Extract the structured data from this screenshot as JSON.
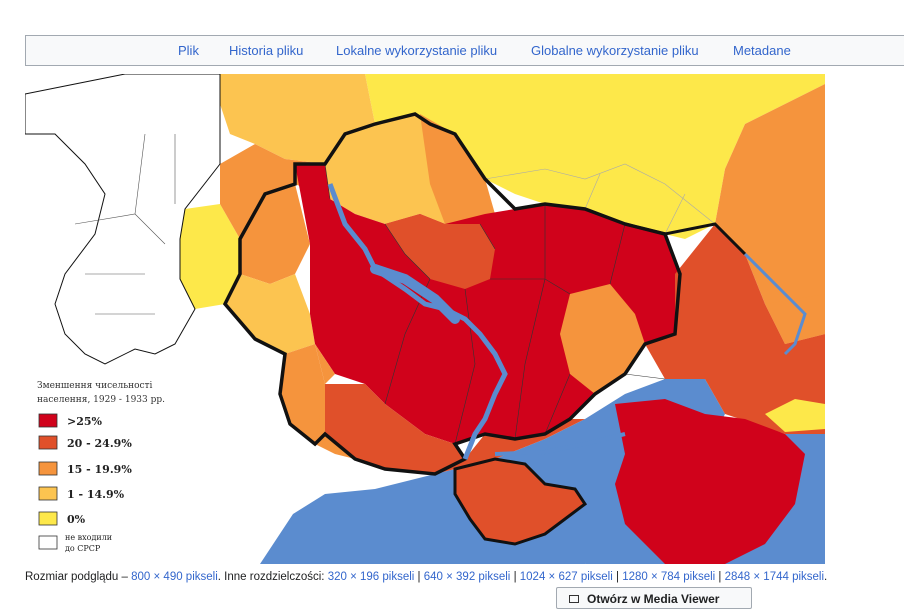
{
  "tabs": [
    {
      "label": "Plik"
    },
    {
      "label": "Historia pliku"
    },
    {
      "label": "Lokalne wykorzystanie pliku"
    },
    {
      "label": "Globalne wykorzystanie pliku"
    },
    {
      "label": "Metadane"
    }
  ],
  "legend": {
    "title_line1": "Зменшення чисельності",
    "title_line2": "населення, 1929 - 1933 рр.",
    "items": [
      {
        "label": ">25%",
        "color": "#d0021b"
      },
      {
        "label": "20 - 24.9%",
        "color": "#e0502a"
      },
      {
        "label": "15 - 19.9%",
        "color": "#f5943d"
      },
      {
        "label": "1 - 14.9%",
        "color": "#fcc450"
      },
      {
        "label": "0%",
        "color": "#fde84a"
      },
      {
        "label_line1": "не входили",
        "label_line2": "до СРСР",
        "color": "#ffffff"
      }
    ]
  },
  "map_colors": {
    "sea": "#5b8ccf",
    "water": "#5b8ccf",
    "border": "#111111"
  },
  "resolutions": {
    "preview_prefix": "Rozmiar podglądu – ",
    "preview_link": "800 × 490 pikseli",
    "other_prefix": ". Inne rozdzielczości: ",
    "links": [
      "320 × 196 pikseli",
      "640 × 392 pikseli",
      "1024 × 627 pikseli",
      "1280 × 784 pikseli",
      "2848 × 1744 pikseli"
    ],
    "separator": " | ",
    "end": "."
  },
  "viewer_button": {
    "label": "Otwórz w Media Viewer"
  }
}
